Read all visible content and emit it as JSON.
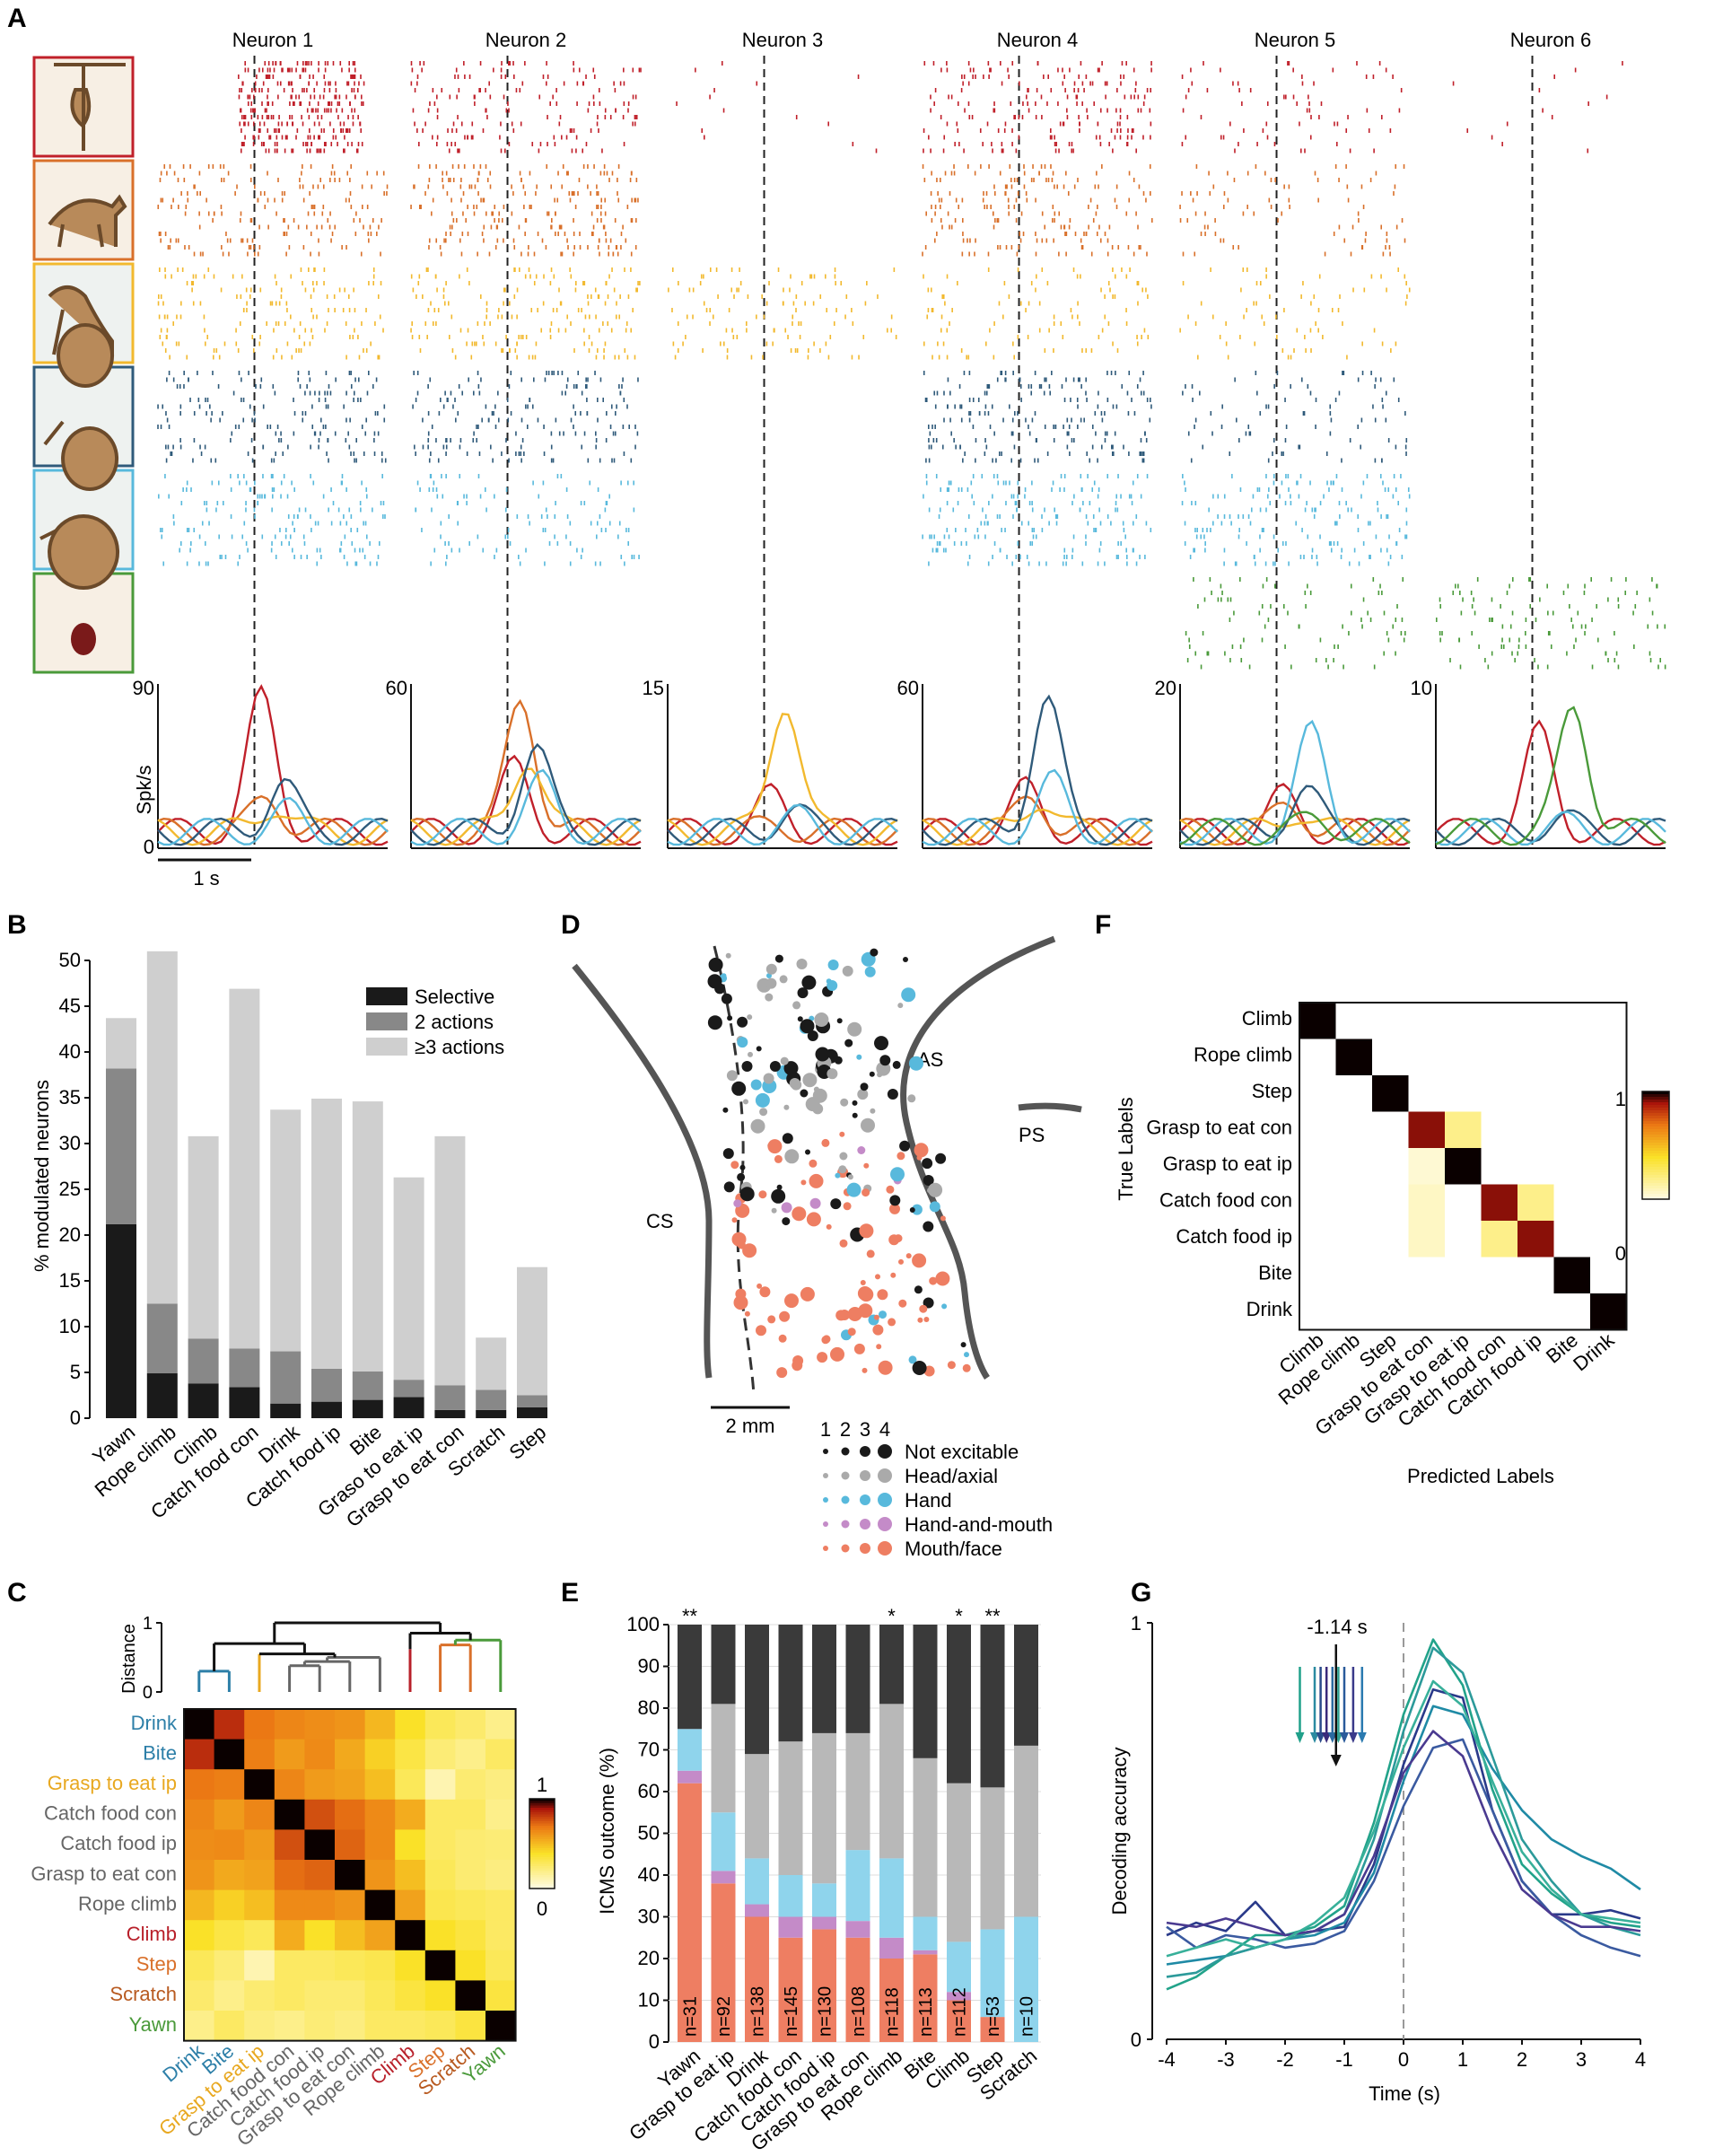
{
  "panels": {
    "A": "A",
    "B": "B",
    "C": "C",
    "D": "D",
    "E": "E",
    "F": "F",
    "G": "G"
  },
  "colors": {
    "climb": "#c0202a",
    "walk": "#d9702a",
    "gold": "#f2b92e",
    "darkblue": "#2f5a7a",
    "lightblue": "#58b9dc",
    "green": "#4a9a3a",
    "black": "#1a1a1a",
    "gray": "#888888",
    "lightgray": "#cfcfcf",
    "handmouth": "#c48bc8",
    "mouth": "#ee7e62"
  },
  "chart_data": [
    {
      "panel": "A",
      "type": "line",
      "ylabel": "Spk/s",
      "scalebar": "1 s",
      "neurons": [
        {
          "name": "Neuron 1",
          "ymax": 90
        },
        {
          "name": "Neuron 2",
          "ymax": 60
        },
        {
          "name": "Neuron 3",
          "ymax": 15
        },
        {
          "name": "Neuron 4",
          "ymax": 60
        },
        {
          "name": "Neuron 5",
          "ymax": 20
        },
        {
          "name": "Neuron 6",
          "ymax": 10
        }
      ],
      "y0": "0"
    },
    {
      "panel": "B",
      "type": "bar",
      "ylabel": "% modulated neurons",
      "ylim": [
        0,
        50
      ],
      "yticks": [
        "0",
        "5",
        "10",
        "15",
        "20",
        "25",
        "30",
        "35",
        "40",
        "45",
        "50"
      ],
      "legend": [
        "Selective",
        "2 actions",
        "≥3 actions"
      ],
      "categories": [
        "Yawn",
        "Rope climb",
        "Climb",
        "Catch food con",
        "Drink",
        "Catch food ip",
        "Bite",
        "Graso to eat ip",
        "Grasp to eat con",
        "Scratch",
        "Step"
      ],
      "series": [
        {
          "name": "Selective",
          "values": [
            21.2,
            4.9,
            3.8,
            3.4,
            1.6,
            1.8,
            2.0,
            2.3,
            0.9,
            0.9,
            1.2
          ]
        },
        {
          "name": "2 actions",
          "values": [
            17.0,
            7.6,
            4.9,
            4.2,
            5.7,
            3.6,
            3.1,
            1.9,
            2.7,
            2.2,
            1.3
          ]
        },
        {
          "name": "≥3 actions",
          "values": [
            5.5,
            38.5,
            22.1,
            39.3,
            26.4,
            29.5,
            29.5,
            22.1,
            27.2,
            5.7,
            14.0
          ]
        }
      ]
    },
    {
      "panel": "C",
      "type": "heatmap",
      "ylabel": "Distance",
      "yticks": [
        "1",
        "0"
      ],
      "colorbar": [
        "1",
        "0"
      ],
      "labels": [
        "Drink",
        "Bite",
        "Grasp to eat ip",
        "Catch food con",
        "Catch food ip",
        "Grasp to eat con",
        "Rope climb",
        "Climb",
        "Step",
        "Scratch",
        "Yawn"
      ],
      "label_colors": [
        "#2d7fa8",
        "#2d7fa8",
        "#e8a820",
        "#666666",
        "#666666",
        "#666666",
        "#666666",
        "#b8202a",
        "#d9702a",
        "#b85a20",
        "#4a9a3a"
      ],
      "matrix": [
        [
          1.0,
          0.85,
          0.7,
          0.66,
          0.64,
          0.62,
          0.52,
          0.4,
          0.3,
          0.26,
          0.2
        ],
        [
          0.85,
          1.0,
          0.68,
          0.6,
          0.65,
          0.56,
          0.45,
          0.34,
          0.24,
          0.2,
          0.28
        ],
        [
          0.7,
          0.68,
          1.0,
          0.66,
          0.6,
          0.58,
          0.5,
          0.3,
          0.12,
          0.25,
          0.22
        ],
        [
          0.66,
          0.6,
          0.66,
          1.0,
          0.78,
          0.72,
          0.65,
          0.55,
          0.28,
          0.28,
          0.2
        ],
        [
          0.64,
          0.65,
          0.6,
          0.78,
          1.0,
          0.74,
          0.65,
          0.4,
          0.28,
          0.25,
          0.24
        ],
        [
          0.62,
          0.56,
          0.58,
          0.72,
          0.74,
          1.0,
          0.62,
          0.5,
          0.3,
          0.25,
          0.22
        ],
        [
          0.52,
          0.45,
          0.5,
          0.65,
          0.65,
          0.62,
          1.0,
          0.58,
          0.32,
          0.3,
          0.28
        ],
        [
          0.4,
          0.34,
          0.3,
          0.55,
          0.4,
          0.5,
          0.58,
          1.0,
          0.4,
          0.35,
          0.28
        ],
        [
          0.3,
          0.24,
          0.12,
          0.28,
          0.28,
          0.3,
          0.32,
          0.4,
          1.0,
          0.4,
          0.3
        ],
        [
          0.26,
          0.2,
          0.25,
          0.28,
          0.25,
          0.25,
          0.3,
          0.35,
          0.4,
          1.0,
          0.35
        ],
        [
          0.2,
          0.28,
          0.22,
          0.2,
          0.24,
          0.22,
          0.28,
          0.28,
          0.3,
          0.35,
          1.0
        ]
      ]
    },
    {
      "panel": "D",
      "type": "scatter",
      "regions": [
        "AS",
        "PS",
        "CS"
      ],
      "scalebar": "2 mm",
      "size_labels": [
        "1",
        "2",
        "3",
        "4"
      ],
      "legend": [
        {
          "label": "Not excitable",
          "color": "#1a1a1a"
        },
        {
          "label": "Head/axial",
          "color": "#aaaaaa"
        },
        {
          "label": "Hand",
          "color": "#58b9dc"
        },
        {
          "label": "Hand-and-mouth",
          "color": "#c48bc8"
        },
        {
          "label": "Mouth/face",
          "color": "#ee7e62"
        }
      ]
    },
    {
      "panel": "E",
      "type": "bar",
      "ylabel": "ICMS outcome (%)",
      "ylim": [
        0,
        100
      ],
      "yticks": [
        "0",
        "10",
        "20",
        "30",
        "40",
        "50",
        "60",
        "70",
        "80",
        "90",
        "100"
      ],
      "categories": [
        "Yawn",
        "Grasp to eat ip",
        "Drink",
        "Catch food con",
        "Catch food ip",
        "Grasp to eat con",
        "Rope climb",
        "Bite",
        "Climb",
        "Step",
        "Scratch"
      ],
      "n": [
        "n=31",
        "n=92",
        "n=138",
        "n=145",
        "n=130",
        "n=108",
        "n=118",
        "n=113",
        "n=112",
        "n=53",
        "n=10"
      ],
      "stars": [
        "**",
        "",
        "",
        "",
        "",
        "",
        "*",
        "",
        "*",
        "**",
        ""
      ],
      "series": [
        {
          "name": "Mouth/face",
          "values": [
            62,
            38,
            30,
            25,
            27,
            25,
            20,
            21,
            10,
            6,
            0
          ]
        },
        {
          "name": "Hand-and-mouth",
          "values": [
            3,
            3,
            3,
            5,
            3,
            4,
            5,
            1,
            2,
            0,
            0
          ]
        },
        {
          "name": "Hand",
          "values": [
            10,
            14,
            11,
            10,
            8,
            17,
            19,
            8,
            12,
            21,
            30
          ]
        },
        {
          "name": "Head/axial",
          "values": [
            0,
            26,
            25,
            32,
            36,
            28,
            37,
            38,
            38,
            34,
            41
          ]
        },
        {
          "name": "Not excitable",
          "values": [
            25,
            19,
            31,
            28,
            26,
            26,
            19,
            32,
            38,
            39,
            29
          ]
        }
      ]
    },
    {
      "panel": "F",
      "type": "heatmap",
      "ylabel": "True Labels",
      "xlabel": "Predicted Labels",
      "colorbar": [
        "1",
        "0"
      ],
      "labels": [
        "Climb",
        "Rope climb",
        "Step",
        "Grasp to eat con",
        "Grasp to eat ip",
        "Catch food con",
        "Catch food ip",
        "Bite",
        "Drink"
      ],
      "matrix": [
        [
          1,
          0,
          0,
          0,
          0,
          0,
          0,
          0,
          0
        ],
        [
          0,
          1,
          0,
          0,
          0,
          0,
          0,
          0,
          0
        ],
        [
          0,
          0,
          1,
          0,
          0,
          0,
          0,
          0,
          0
        ],
        [
          0,
          0,
          0,
          0.92,
          0.2,
          0,
          0,
          0,
          0
        ],
        [
          0,
          0,
          0,
          0.05,
          1,
          0,
          0,
          0,
          0
        ],
        [
          0,
          0,
          0,
          0.08,
          0,
          0.92,
          0.2,
          0,
          0
        ],
        [
          0,
          0,
          0,
          0.08,
          0,
          0.2,
          0.92,
          0,
          0
        ],
        [
          0,
          0,
          0,
          0,
          0,
          0,
          0,
          1,
          0
        ],
        [
          0,
          0,
          0,
          0,
          0,
          0,
          0,
          0,
          1
        ]
      ]
    },
    {
      "panel": "G",
      "type": "line",
      "ylabel": "Decoding accuracy",
      "xlabel": "Time (s)",
      "xlim": [
        -4,
        4
      ],
      "ylim": [
        0,
        1
      ],
      "xticks": [
        "-4",
        "-3",
        "-2",
        "-1",
        "0",
        "1",
        "2",
        "3",
        "4"
      ],
      "yticks": [
        "0",
        "1"
      ],
      "annotation": "-1.14 s",
      "arrow_times": [
        -1.75,
        -1.5,
        -1.4,
        -1.3,
        -1.2,
        -1.1,
        -1.0,
        -0.85,
        -0.7
      ],
      "arrow_colors": [
        "#20a08a",
        "#2a8aa0",
        "#2a4a8a",
        "#3a2a7a",
        "#2a6aa0",
        "#30a090",
        "#2a5a9a",
        "#3a3a8a",
        "#2a7ab0"
      ],
      "series": [
        {
          "color": "#2a3a8a",
          "x": [
            -4,
            -3.5,
            -3,
            -2.5,
            -2,
            -1.5,
            -1,
            -0.5,
            0,
            0.5,
            1,
            1.5,
            2,
            2.5,
            3,
            3.5,
            4
          ],
          "y": [
            0.25,
            0.28,
            0.26,
            0.33,
            0.25,
            0.26,
            0.27,
            0.42,
            0.66,
            0.84,
            0.82,
            0.55,
            0.38,
            0.3,
            0.3,
            0.31,
            0.29
          ]
        },
        {
          "color": "#3a5aa0",
          "x": [
            -4,
            -3.5,
            -3,
            -2.5,
            -2,
            -1.5,
            -1,
            -0.5,
            0,
            0.5,
            1,
            1.5,
            2,
            2.5,
            3,
            3.5,
            4
          ],
          "y": [
            0.27,
            0.22,
            0.25,
            0.24,
            0.22,
            0.23,
            0.26,
            0.38,
            0.56,
            0.7,
            0.72,
            0.55,
            0.38,
            0.3,
            0.25,
            0.22,
            0.2
          ]
        },
        {
          "color": "#1f8aa5",
          "x": [
            -4,
            -3.5,
            -3,
            -2.5,
            -2,
            -1.5,
            -1,
            -0.5,
            0,
            0.5,
            1,
            1.5,
            2,
            2.5,
            3,
            3.5,
            4
          ],
          "y": [
            0.18,
            0.19,
            0.2,
            0.22,
            0.24,
            0.25,
            0.28,
            0.4,
            0.62,
            0.8,
            0.78,
            0.65,
            0.55,
            0.48,
            0.44,
            0.41,
            0.36
          ]
        },
        {
          "color": "#22a38a",
          "x": [
            -4,
            -3.5,
            -3,
            -2.5,
            -2,
            -1.5,
            -1,
            -0.5,
            0,
            0.5,
            1,
            1.5,
            2,
            2.5,
            3,
            3.5,
            4
          ],
          "y": [
            0.12,
            0.15,
            0.2,
            0.25,
            0.25,
            0.27,
            0.32,
            0.52,
            0.78,
            0.96,
            0.85,
            0.6,
            0.42,
            0.35,
            0.3,
            0.28,
            0.27
          ]
        },
        {
          "color": "#2c9a9a",
          "x": [
            -4,
            -3.5,
            -3,
            -2.5,
            -2,
            -1.5,
            -1,
            -0.5,
            0,
            0.5,
            1,
            1.5,
            2,
            2.5,
            3,
            3.5,
            4
          ],
          "y": [
            0.15,
            0.16,
            0.2,
            0.22,
            0.24,
            0.26,
            0.3,
            0.48,
            0.74,
            0.94,
            0.88,
            0.68,
            0.48,
            0.38,
            0.3,
            0.27,
            0.25
          ]
        },
        {
          "color": "#4a3a90",
          "x": [
            -4,
            -3.5,
            -3,
            -2.5,
            -2,
            -1.5,
            -1,
            -0.5,
            0,
            0.5,
            1,
            1.5,
            2,
            2.5,
            3,
            3.5,
            4
          ],
          "y": [
            0.28,
            0.27,
            0.29,
            0.27,
            0.25,
            0.26,
            0.3,
            0.44,
            0.64,
            0.74,
            0.68,
            0.5,
            0.36,
            0.3,
            0.27,
            0.27,
            0.26
          ]
        },
        {
          "color": "#38b09a",
          "x": [
            -4,
            -3.5,
            -3,
            -2.5,
            -2,
            -1.5,
            -1,
            -0.5,
            0,
            0.5,
            1,
            1.5,
            2,
            2.5,
            3,
            3.5,
            4
          ],
          "y": [
            0.2,
            0.22,
            0.24,
            0.22,
            0.24,
            0.28,
            0.34,
            0.5,
            0.7,
            0.86,
            0.8,
            0.62,
            0.45,
            0.36,
            0.3,
            0.29,
            0.28
          ]
        }
      ]
    }
  ]
}
